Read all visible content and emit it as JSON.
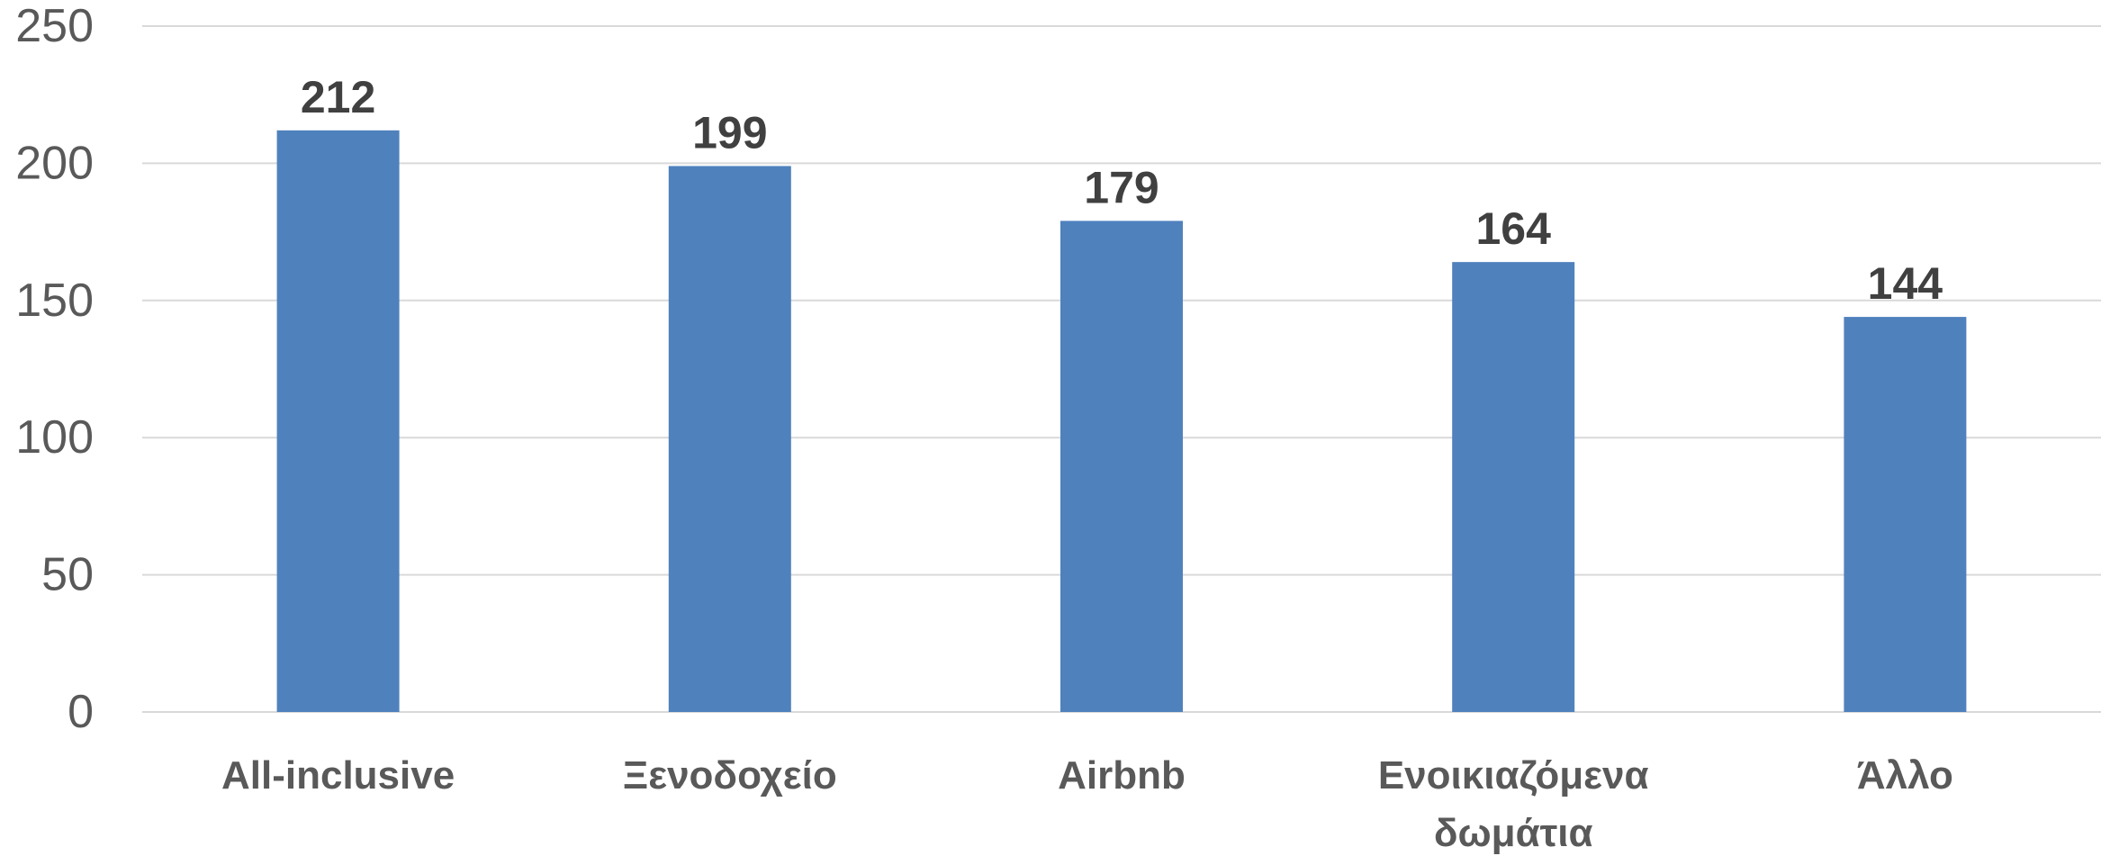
{
  "chart_data": {
    "type": "bar",
    "categories": [
      "All-inclusive",
      "Ξενοδοχείο",
      "Airbnb",
      "Ενοικιαζόμενα δωμάτια",
      "Άλλο"
    ],
    "category_lines": [
      [
        "All-inclusive"
      ],
      [
        "Ξενοδοχείο"
      ],
      [
        "Airbnb"
      ],
      [
        "Ενοικιαζόμενα",
        "δωμάτια"
      ],
      [
        "Άλλο"
      ]
    ],
    "values": [
      212,
      199,
      179,
      164,
      144
    ],
    "ylim": [
      0,
      250
    ],
    "yticks": [
      0,
      50,
      100,
      150,
      200,
      250
    ],
    "data_labels": true,
    "grid": true,
    "legend": "none",
    "title": "",
    "xlabel": "",
    "ylabel": ""
  },
  "colors": {
    "bar": "#4f81bd",
    "grid": "#d9d9d9",
    "axis_text": "#595959",
    "data_label": "#404040"
  }
}
